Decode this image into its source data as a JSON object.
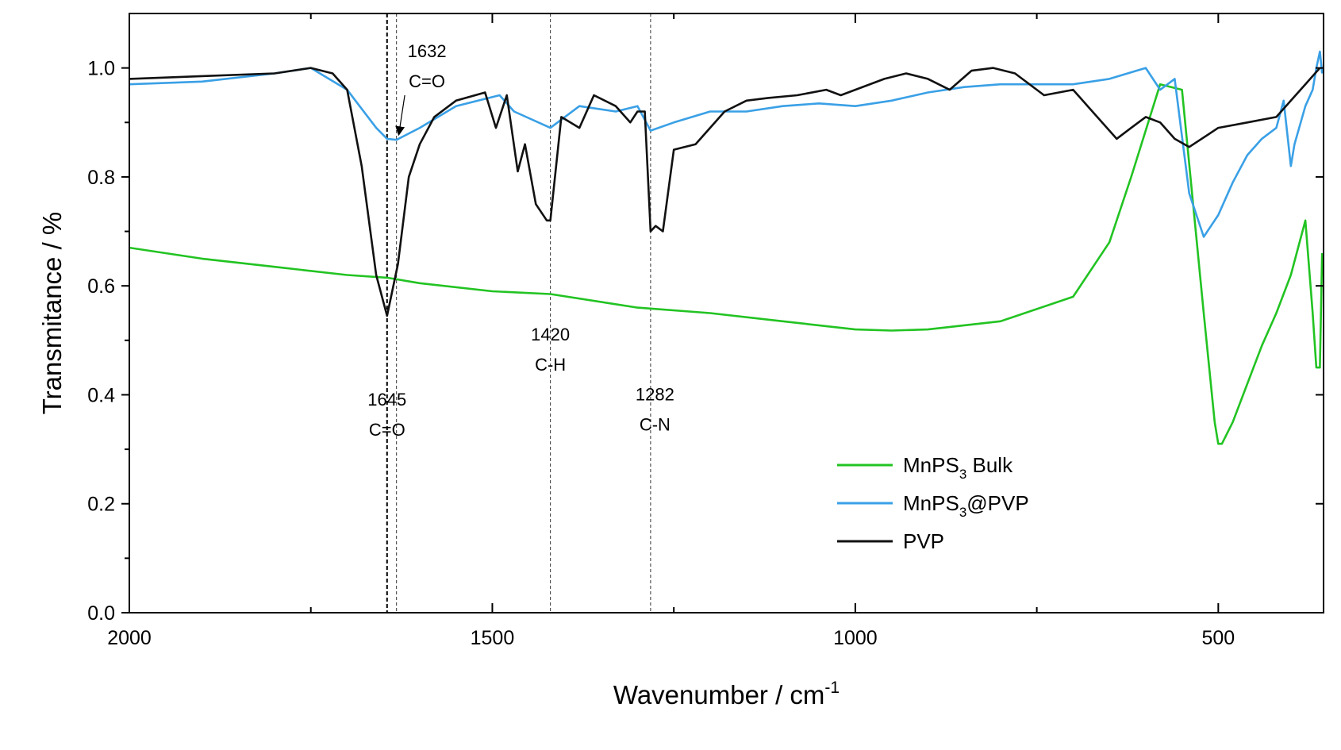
{
  "chart_data": {
    "type": "line",
    "xlabel": "Wavenumber / cm",
    "xlabel_sup": "-1",
    "ylabel": "Transmitance / %",
    "xlim": [
      2000,
      355
    ],
    "ylim": [
      0,
      1.1
    ],
    "x_reversed": true,
    "x_ticks": [
      2000,
      1500,
      1000,
      500
    ],
    "x_tick_labels": [
      "2000",
      "1500",
      "1000",
      "500"
    ],
    "x_minor_ticks": [
      1750,
      1250,
      750
    ],
    "y_ticks": [
      0.0,
      0.2,
      0.4,
      0.6,
      0.8,
      1.0
    ],
    "y_tick_labels": [
      "0.0",
      "0.2",
      "0.4",
      "0.6",
      "0.8",
      "1.0"
    ],
    "grid": false,
    "legend_position": "lower-right",
    "legend": [
      {
        "base": "MnPS",
        "sub": "3",
        "rest": " Bulk",
        "color": "#22c322"
      },
      {
        "base": "MnPS",
        "sub": "3",
        "rest": "@PVP",
        "color": "#3aa0e6"
      },
      {
        "base": "PVP",
        "sub": "",
        "rest": "",
        "color": "#111111"
      }
    ],
    "reference_lines": [
      {
        "x": 1645,
        "style": "strong"
      },
      {
        "x": 1632,
        "style": "thin"
      },
      {
        "x": 1420,
        "style": "thin"
      },
      {
        "x": 1282,
        "style": "thin"
      }
    ],
    "annotations": [
      {
        "id": "1645",
        "lines": [
          "1645",
          "C=O"
        ],
        "x": 1645,
        "y": 0.38
      },
      {
        "id": "1632",
        "lines": [
          "1632",
          "C=O"
        ],
        "x": 1590,
        "y": 1.02,
        "arrow_to": [
          1632,
          0.87
        ]
      },
      {
        "id": "1420",
        "lines": [
          "1420",
          "C-H"
        ],
        "x": 1420,
        "y": 0.5
      },
      {
        "id": "1282",
        "lines": [
          "1282",
          "C-N"
        ],
        "x": 1276,
        "y": 0.39
      }
    ],
    "series": [
      {
        "name": "MnPS3 Bulk",
        "color": "#22c322",
        "x": [
          2000,
          1900,
          1800,
          1700,
          1645,
          1600,
          1500,
          1420,
          1300,
          1200,
          1100,
          1000,
          950,
          900,
          800,
          700,
          650,
          620,
          580,
          550,
          520,
          505,
          500,
          495,
          480,
          460,
          440,
          420,
          400,
          380,
          370,
          365,
          360,
          357
        ],
        "y": [
          0.67,
          0.65,
          0.635,
          0.62,
          0.615,
          0.605,
          0.59,
          0.585,
          0.56,
          0.55,
          0.535,
          0.52,
          0.518,
          0.52,
          0.535,
          0.58,
          0.68,
          0.8,
          0.97,
          0.96,
          0.55,
          0.35,
          0.31,
          0.31,
          0.35,
          0.42,
          0.49,
          0.55,
          0.62,
          0.72,
          0.55,
          0.45,
          0.45,
          0.66
        ]
      },
      {
        "name": "MnPS3@PVP",
        "color": "#3aa0e6",
        "x": [
          2000,
          1900,
          1800,
          1750,
          1700,
          1660,
          1645,
          1632,
          1600,
          1550,
          1490,
          1470,
          1420,
          1380,
          1330,
          1300,
          1282,
          1250,
          1200,
          1150,
          1100,
          1050,
          1000,
          950,
          900,
          850,
          800,
          750,
          700,
          650,
          600,
          580,
          560,
          540,
          520,
          500,
          480,
          460,
          440,
          420,
          410,
          400,
          395,
          380,
          370,
          365,
          360,
          357
        ],
        "y": [
          0.97,
          0.975,
          0.99,
          1.0,
          0.96,
          0.89,
          0.87,
          0.868,
          0.89,
          0.93,
          0.95,
          0.92,
          0.89,
          0.93,
          0.92,
          0.93,
          0.885,
          0.9,
          0.92,
          0.92,
          0.93,
          0.935,
          0.93,
          0.94,
          0.955,
          0.965,
          0.97,
          0.97,
          0.97,
          0.98,
          1.0,
          0.96,
          0.98,
          0.77,
          0.69,
          0.73,
          0.79,
          0.84,
          0.87,
          0.89,
          0.94,
          0.82,
          0.86,
          0.93,
          0.96,
          1.0,
          1.03,
          0.99
        ]
      },
      {
        "name": "PVP",
        "color": "#111111",
        "x": [
          2000,
          1900,
          1800,
          1750,
          1720,
          1700,
          1680,
          1660,
          1645,
          1630,
          1615,
          1600,
          1580,
          1550,
          1510,
          1495,
          1480,
          1465,
          1455,
          1440,
          1425,
          1420,
          1405,
          1380,
          1360,
          1330,
          1310,
          1300,
          1290,
          1282,
          1275,
          1265,
          1250,
          1220,
          1200,
          1180,
          1150,
          1120,
          1080,
          1040,
          1020,
          1000,
          960,
          930,
          900,
          870,
          840,
          810,
          780,
          740,
          700,
          680,
          640,
          620,
          600,
          580,
          560,
          540,
          500,
          460,
          420,
          400,
          380,
          360
        ],
        "y": [
          0.98,
          0.985,
          0.99,
          1.0,
          0.99,
          0.96,
          0.82,
          0.62,
          0.545,
          0.64,
          0.8,
          0.86,
          0.91,
          0.94,
          0.955,
          0.89,
          0.95,
          0.81,
          0.86,
          0.75,
          0.72,
          0.72,
          0.91,
          0.89,
          0.95,
          0.93,
          0.9,
          0.92,
          0.92,
          0.7,
          0.71,
          0.7,
          0.85,
          0.86,
          0.89,
          0.92,
          0.94,
          0.945,
          0.95,
          0.96,
          0.95,
          0.96,
          0.98,
          0.99,
          0.98,
          0.96,
          0.995,
          1.0,
          0.99,
          0.95,
          0.96,
          0.93,
          0.87,
          0.89,
          0.91,
          0.9,
          0.87,
          0.855,
          0.89,
          0.9,
          0.91,
          0.94,
          0.97,
          1.0
        ]
      }
    ]
  }
}
